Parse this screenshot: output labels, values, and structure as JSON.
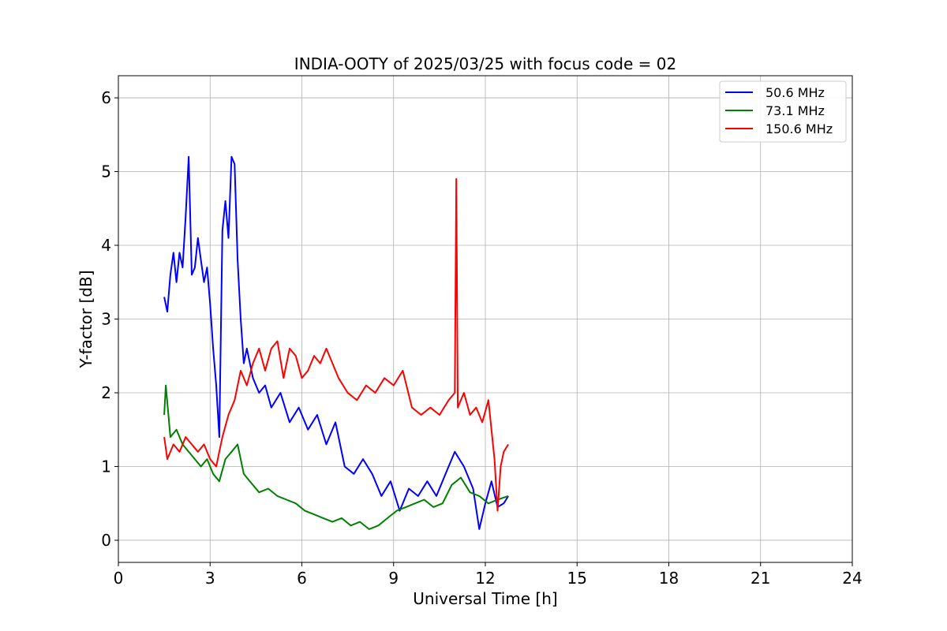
{
  "chart_data": {
    "type": "line",
    "title": "INDIA-OOTY of 2025/03/25 with focus code = 02",
    "xlabel": "Universal Time [h]",
    "ylabel": "Y-factor [dB]",
    "xlim": [
      0,
      24
    ],
    "ylim": [
      -0.3,
      6.3
    ],
    "xticks": [
      0,
      3,
      6,
      9,
      12,
      15,
      18,
      21,
      24
    ],
    "yticks": [
      0,
      1,
      2,
      3,
      4,
      5,
      6
    ],
    "grid": true,
    "legend_position": "top-right",
    "series": [
      {
        "name": "  50.6 MHz",
        "color": "#0000ff",
        "x": [
          1.5,
          1.6,
          1.7,
          1.8,
          1.9,
          2.0,
          2.1,
          2.2,
          2.3,
          2.4,
          2.5,
          2.6,
          2.7,
          2.8,
          2.9,
          3.0,
          3.1,
          3.2,
          3.3,
          3.4,
          3.5,
          3.6,
          3.7,
          3.8,
          3.9,
          4.0,
          4.1,
          4.2,
          4.4,
          4.6,
          4.8,
          5.0,
          5.3,
          5.6,
          5.9,
          6.2,
          6.5,
          6.8,
          7.1,
          7.4,
          7.7,
          8.0,
          8.3,
          8.6,
          8.9,
          9.2,
          9.5,
          9.8,
          10.1,
          10.4,
          10.7,
          11.0,
          11.3,
          11.6,
          11.8,
          12.0,
          12.2,
          12.4,
          12.6,
          12.75
        ],
        "y": [
          3.3,
          3.1,
          3.6,
          3.9,
          3.5,
          3.9,
          3.7,
          4.4,
          5.2,
          3.6,
          3.7,
          4.1,
          3.8,
          3.5,
          3.7,
          3.2,
          2.6,
          2.1,
          1.4,
          4.2,
          4.6,
          4.1,
          5.2,
          5.1,
          3.8,
          3.0,
          2.4,
          2.6,
          2.2,
          2.0,
          2.1,
          1.8,
          2.0,
          1.6,
          1.8,
          1.5,
          1.7,
          1.3,
          1.6,
          1.0,
          0.9,
          1.1,
          0.9,
          0.6,
          0.8,
          0.4,
          0.7,
          0.6,
          0.8,
          0.6,
          0.9,
          1.2,
          1.0,
          0.7,
          0.15,
          0.5,
          0.8,
          0.45,
          0.5,
          0.6
        ]
      },
      {
        "name": "  73.1 MHz",
        "color": "#008000",
        "x": [
          1.5,
          1.55,
          1.7,
          1.9,
          2.1,
          2.3,
          2.5,
          2.7,
          2.9,
          3.1,
          3.3,
          3.5,
          3.7,
          3.9,
          4.1,
          4.3,
          4.6,
          4.9,
          5.2,
          5.5,
          5.8,
          6.1,
          6.4,
          6.7,
          7.0,
          7.3,
          7.6,
          7.9,
          8.2,
          8.5,
          8.8,
          9.1,
          9.4,
          9.7,
          10.0,
          10.3,
          10.6,
          10.9,
          11.2,
          11.5,
          11.8,
          12.1,
          12.4,
          12.75
        ],
        "y": [
          1.7,
          2.1,
          1.4,
          1.5,
          1.3,
          1.2,
          1.1,
          1.0,
          1.1,
          0.9,
          0.8,
          1.1,
          1.2,
          1.3,
          0.9,
          0.8,
          0.65,
          0.7,
          0.6,
          0.55,
          0.5,
          0.4,
          0.35,
          0.3,
          0.25,
          0.3,
          0.2,
          0.25,
          0.15,
          0.2,
          0.3,
          0.4,
          0.45,
          0.5,
          0.55,
          0.45,
          0.5,
          0.75,
          0.85,
          0.65,
          0.6,
          0.5,
          0.55,
          0.6
        ]
      },
      {
        "name": "150.6 MHz",
        "color": "#ff0000",
        "x": [
          1.5,
          1.6,
          1.8,
          2.0,
          2.2,
          2.4,
          2.6,
          2.8,
          3.0,
          3.2,
          3.4,
          3.6,
          3.8,
          4.0,
          4.2,
          4.4,
          4.6,
          4.8,
          5.0,
          5.2,
          5.4,
          5.6,
          5.8,
          6.0,
          6.2,
          6.4,
          6.6,
          6.8,
          7.0,
          7.2,
          7.5,
          7.8,
          8.1,
          8.4,
          8.7,
          9.0,
          9.3,
          9.6,
          9.9,
          10.2,
          10.5,
          10.8,
          11.0,
          11.05,
          11.1,
          11.3,
          11.5,
          11.7,
          11.9,
          12.1,
          12.3,
          12.4,
          12.5,
          12.6,
          12.75
        ],
        "y": [
          1.4,
          1.1,
          1.3,
          1.2,
          1.4,
          1.3,
          1.2,
          1.3,
          1.1,
          1.0,
          1.4,
          1.7,
          1.9,
          2.3,
          2.1,
          2.4,
          2.6,
          2.3,
          2.6,
          2.7,
          2.2,
          2.6,
          2.5,
          2.2,
          2.3,
          2.5,
          2.4,
          2.6,
          2.4,
          2.2,
          2.0,
          1.9,
          2.1,
          2.0,
          2.2,
          2.1,
          2.3,
          1.8,
          1.7,
          1.8,
          1.7,
          1.9,
          2.0,
          4.9,
          1.8,
          2.0,
          1.7,
          1.8,
          1.6,
          1.9,
          1.1,
          0.4,
          1.0,
          1.2,
          1.3
        ]
      }
    ]
  }
}
